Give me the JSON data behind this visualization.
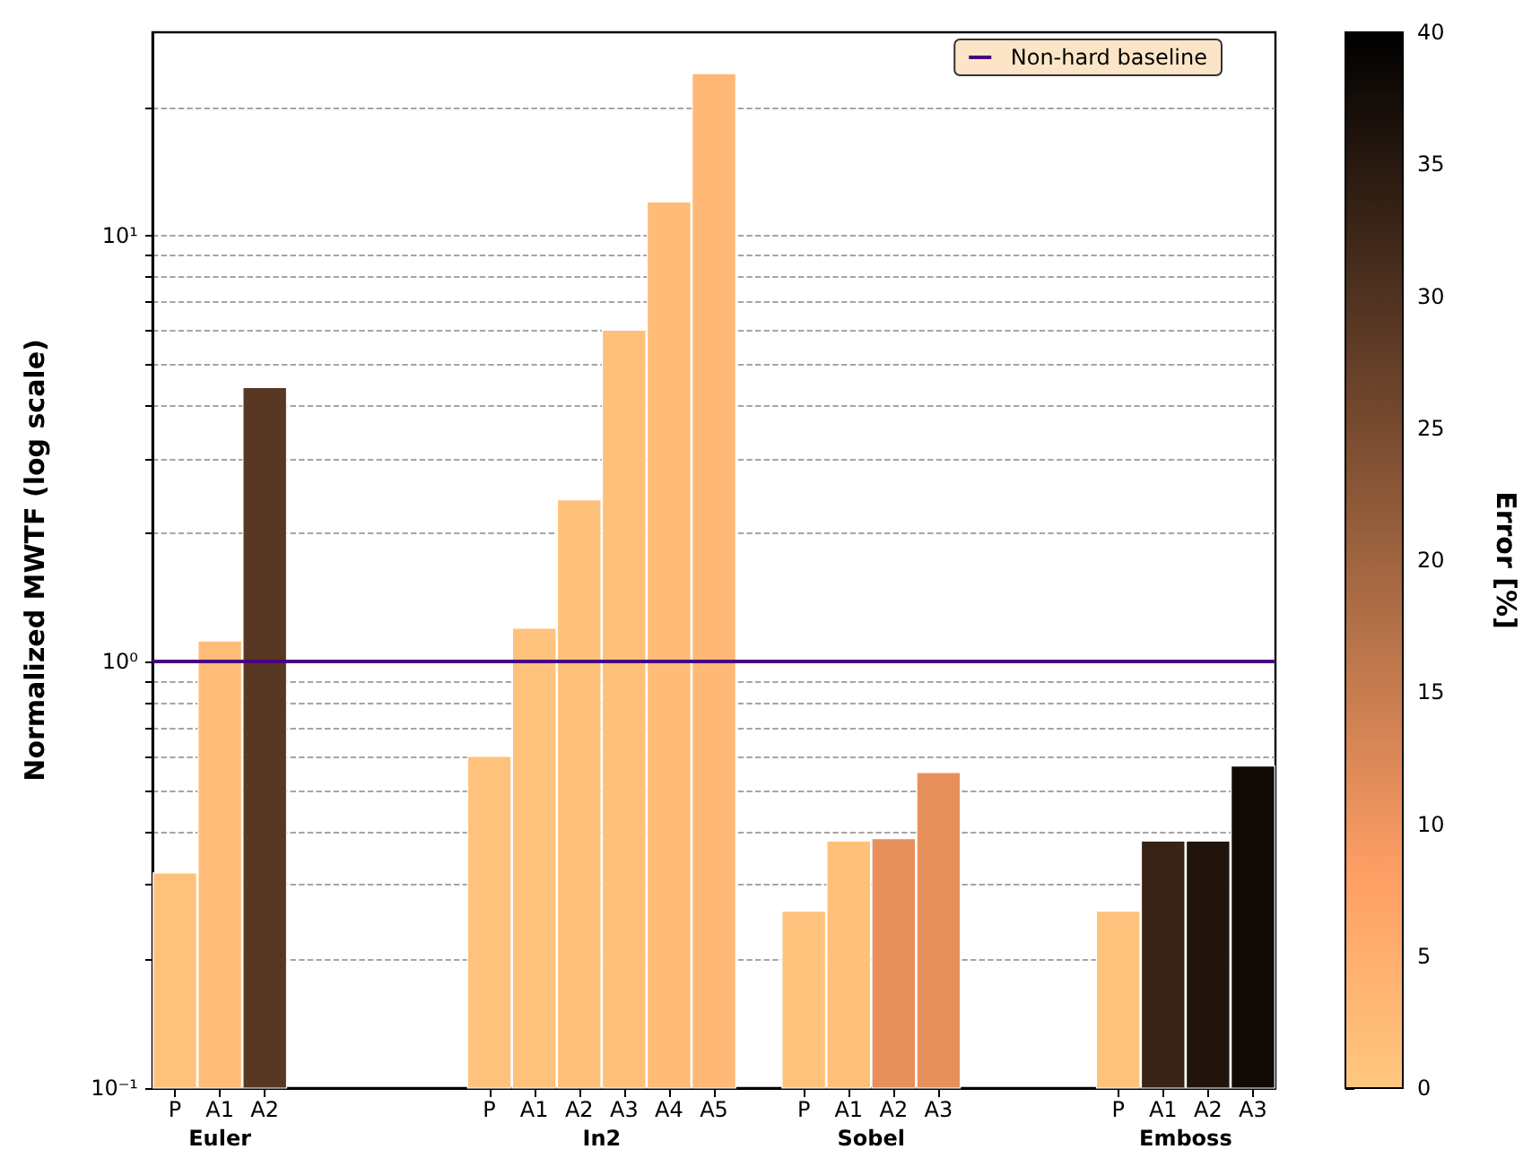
{
  "chart_data": {
    "type": "bar",
    "categories": [
      "P",
      "A1",
      "A2",
      null,
      null,
      null,
      null,
      "P",
      "A1",
      "A2",
      "A3",
      "A4",
      "A5",
      null,
      "P",
      "A1",
      "A2",
      "A3",
      null,
      null,
      null,
      "P",
      "A1",
      "A2",
      "A3"
    ],
    "values": [
      0.32,
      1.12,
      4.4,
      null,
      null,
      null,
      null,
      0.6,
      1.2,
      2.4,
      6.0,
      12,
      24,
      null,
      0.26,
      0.38,
      0.385,
      0.55,
      null,
      null,
      null,
      0.26,
      0.38,
      0.38,
      0.57
    ],
    "cvalues": [
      1,
      2,
      29,
      null,
      null,
      null,
      null,
      1,
      1,
      1.5,
      1.5,
      2.5,
      3,
      null,
      1,
      1.5,
      11,
      11,
      null,
      null,
      null,
      1,
      33,
      36,
      38
    ],
    "ylabel": "Normalized MWTF (log scale)",
    "clabel": "Error [%]",
    "clim": [
      0,
      40
    ],
    "cticks": [
      0,
      5,
      10,
      15,
      20,
      25,
      30,
      35,
      40
    ],
    "log": true,
    "ylim": [
      0.1,
      30
    ],
    "yticks": [
      {
        "value": 0.1,
        "label": "10⁻¹"
      },
      {
        "value": 0.2,
        "label": null
      },
      {
        "value": 0.3,
        "label": null
      },
      {
        "value": 0.4,
        "label": null
      },
      {
        "value": 0.5,
        "label": null
      },
      {
        "value": 0.6,
        "label": null
      },
      {
        "value": 0.7,
        "label": null
      },
      {
        "value": 0.8,
        "label": null
      },
      {
        "value": 0.9,
        "label": null
      },
      {
        "value": 1,
        "label": "10⁰"
      },
      {
        "value": 2,
        "label": null
      },
      {
        "value": 3,
        "label": null
      },
      {
        "value": 4,
        "label": null
      },
      {
        "value": 5,
        "label": null
      },
      {
        "value": 6,
        "label": null
      },
      {
        "value": 7,
        "label": null
      },
      {
        "value": 8,
        "label": null
      },
      {
        "value": 9,
        "label": null
      },
      {
        "value": 10,
        "label": "10¹"
      },
      {
        "value": 20,
        "label": null
      }
    ],
    "grid": "y",
    "legend": "top right",
    "ref_lines": [
      {
        "axis": "y",
        "value": 1,
        "label": "Non-hard baseline",
        "color": "#4b0082"
      }
    ],
    "annotations": [
      "Euler",
      "In2",
      "Sobel",
      "Emboss"
    ]
  }
}
